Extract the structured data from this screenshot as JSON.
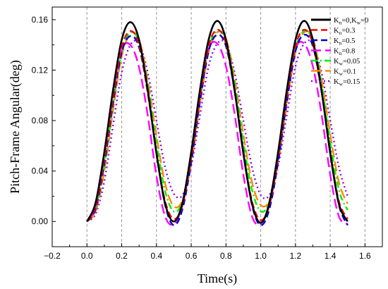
{
  "chart_data": {
    "type": "line",
    "title": "",
    "xlabel": "Time(s)",
    "ylabel": "Pitch-Frame Angular(deg)",
    "xlim": [
      -0.2,
      1.7
    ],
    "ylim": [
      -0.02,
      0.17
    ],
    "xticks": [
      -0.2,
      0.0,
      0.2,
      0.4,
      0.6,
      0.8,
      1.0,
      1.2,
      1.4,
      1.6
    ],
    "xtick_labels": [
      "−0.2",
      "0.0",
      "0.2",
      "0.4",
      "0.6",
      "0.8",
      "1.0",
      "1.2",
      "1.4",
      "1.6"
    ],
    "yticks": [
      0.0,
      0.04,
      0.08,
      0.12,
      0.16
    ],
    "ytick_labels": [
      "0.00",
      "0.04",
      "0.08",
      "0.12",
      "0.16"
    ],
    "grid": "vertical dashed",
    "legend": "top-right",
    "series": [
      {
        "sub": [
          "K",
          "n",
          "=0,K",
          "w",
          "=0"
        ],
        "color": "#000000",
        "style": "solid",
        "x": [
          0.0,
          0.05,
          0.1,
          0.15,
          0.2,
          0.25,
          0.3,
          0.35,
          0.4,
          0.45,
          0.5,
          0.55,
          0.6,
          0.65,
          0.7,
          0.75,
          0.8,
          0.85,
          0.9,
          0.95,
          1.0,
          1.05,
          1.1,
          1.15,
          1.2,
          1.25,
          1.3,
          1.35,
          1.4,
          1.45,
          1.5
        ],
        "y": [
          0.0,
          0.015,
          0.055,
          0.104,
          0.144,
          0.158,
          0.144,
          0.104,
          0.054,
          0.014,
          0.0,
          0.015,
          0.055,
          0.104,
          0.144,
          0.159,
          0.144,
          0.104,
          0.054,
          0.014,
          -0.001,
          0.015,
          0.055,
          0.104,
          0.144,
          0.159,
          0.144,
          0.104,
          0.054,
          0.014,
          0.0
        ]
      },
      {
        "sub": [
          "K",
          "n",
          "=0.3",
          "",
          ""
        ],
        "color": "#ff0000",
        "style": "dash",
        "x": [
          0.0,
          0.05,
          0.1,
          0.15,
          0.2,
          0.25,
          0.3,
          0.35,
          0.4,
          0.45,
          0.5,
          0.55,
          0.6,
          0.65,
          0.7,
          0.75,
          0.8,
          0.85,
          0.9,
          0.95,
          1.0,
          1.05,
          1.1,
          1.15,
          1.2,
          1.25,
          1.3,
          1.35,
          1.4,
          1.45,
          1.5
        ],
        "y": [
          0.0,
          0.012,
          0.05,
          0.098,
          0.138,
          0.151,
          0.14,
          0.102,
          0.054,
          0.016,
          0.002,
          0.013,
          0.051,
          0.099,
          0.139,
          0.152,
          0.141,
          0.103,
          0.055,
          0.016,
          0.001,
          0.013,
          0.051,
          0.099,
          0.139,
          0.152,
          0.141,
          0.103,
          0.055,
          0.016,
          0.002
        ]
      },
      {
        "sub": [
          "K",
          "n",
          "=0.5",
          "",
          ""
        ],
        "color": "#0000cc",
        "style": "dash",
        "x": [
          0.0,
          0.05,
          0.1,
          0.15,
          0.2,
          0.25,
          0.3,
          0.35,
          0.4,
          0.45,
          0.5,
          0.55,
          0.6,
          0.65,
          0.7,
          0.75,
          0.8,
          0.85,
          0.9,
          0.95,
          1.0,
          1.05,
          1.1,
          1.15,
          1.2,
          1.25,
          1.3,
          1.35,
          1.4,
          1.45,
          1.5
        ],
        "y": [
          0.0,
          0.01,
          0.046,
          0.094,
          0.134,
          0.147,
          0.138,
          0.102,
          0.055,
          0.013,
          -0.003,
          0.01,
          0.047,
          0.095,
          0.135,
          0.148,
          0.139,
          0.103,
          0.056,
          0.013,
          -0.003,
          0.01,
          0.047,
          0.095,
          0.135,
          0.148,
          0.139,
          0.103,
          0.056,
          0.013,
          -0.003
        ]
      },
      {
        "sub": [
          "K",
          "n",
          "=0.8",
          "",
          ""
        ],
        "color": "#ff00ff",
        "style": "longdash",
        "x": [
          0.0,
          0.05,
          0.1,
          0.15,
          0.2,
          0.25,
          0.3,
          0.35,
          0.4,
          0.45,
          0.5,
          0.55,
          0.6,
          0.65,
          0.7,
          0.75,
          0.8,
          0.85,
          0.9,
          0.95,
          1.0,
          1.05,
          1.1,
          1.15,
          1.2,
          1.25,
          1.3,
          1.35,
          1.4,
          1.45,
          1.5
        ],
        "y": [
          0.0,
          0.012,
          0.052,
          0.1,
          0.136,
          0.14,
          0.122,
          0.084,
          0.036,
          0.004,
          -0.002,
          0.014,
          0.054,
          0.102,
          0.137,
          0.141,
          0.123,
          0.085,
          0.037,
          0.004,
          -0.002,
          0.014,
          0.054,
          0.102,
          0.137,
          0.141,
          0.123,
          0.085,
          0.037,
          0.004,
          -0.002
        ]
      },
      {
        "sub": [
          "K",
          "w",
          "=0.05",
          "",
          ""
        ],
        "color": "#00ee00",
        "style": "dashdot",
        "x": [
          0.0,
          0.05,
          0.1,
          0.15,
          0.2,
          0.25,
          0.3,
          0.35,
          0.4,
          0.45,
          0.5,
          0.55,
          0.6,
          0.65,
          0.7,
          0.75,
          0.8,
          0.85,
          0.9,
          0.95,
          1.0,
          1.05,
          1.1,
          1.15,
          1.2,
          1.25,
          1.3,
          1.35,
          1.4,
          1.45,
          1.5
        ],
        "y": [
          0.0,
          0.01,
          0.044,
          0.092,
          0.134,
          0.15,
          0.142,
          0.108,
          0.062,
          0.024,
          0.008,
          0.016,
          0.05,
          0.097,
          0.137,
          0.151,
          0.143,
          0.109,
          0.063,
          0.025,
          0.008,
          0.016,
          0.05,
          0.097,
          0.137,
          0.151,
          0.143,
          0.109,
          0.063,
          0.025,
          0.009
        ]
      },
      {
        "sub": [
          "K",
          "w",
          "=0.1",
          "",
          ""
        ],
        "color": "#ff8800",
        "style": "longdash",
        "x": [
          0.0,
          0.05,
          0.1,
          0.15,
          0.2,
          0.25,
          0.3,
          0.35,
          0.4,
          0.45,
          0.5,
          0.55,
          0.6,
          0.65,
          0.7,
          0.75,
          0.8,
          0.85,
          0.9,
          0.95,
          1.0,
          1.05,
          1.1,
          1.15,
          1.2,
          1.25,
          1.3,
          1.35,
          1.4,
          1.45,
          1.5
        ],
        "y": [
          0.0,
          0.008,
          0.04,
          0.088,
          0.131,
          0.149,
          0.144,
          0.112,
          0.068,
          0.03,
          0.012,
          0.017,
          0.047,
          0.093,
          0.134,
          0.15,
          0.145,
          0.113,
          0.069,
          0.031,
          0.013,
          0.017,
          0.047,
          0.093,
          0.134,
          0.15,
          0.145,
          0.113,
          0.069,
          0.031,
          0.014
        ]
      },
      {
        "sub": [
          "K",
          "w",
          "=0.15",
          "",
          ""
        ],
        "color": "#8800ee",
        "style": "dot",
        "x": [
          0.0,
          0.05,
          0.1,
          0.15,
          0.2,
          0.25,
          0.3,
          0.35,
          0.4,
          0.45,
          0.5,
          0.55,
          0.6,
          0.65,
          0.7,
          0.75,
          0.8,
          0.85,
          0.9,
          0.95,
          1.0,
          1.05,
          1.1,
          1.15,
          1.2,
          1.25,
          1.3,
          1.35,
          1.4,
          1.45,
          1.5
        ],
        "y": [
          0.0,
          0.006,
          0.032,
          0.076,
          0.118,
          0.14,
          0.141,
          0.118,
          0.08,
          0.043,
          0.022,
          0.021,
          0.044,
          0.084,
          0.123,
          0.141,
          0.141,
          0.118,
          0.08,
          0.043,
          0.021,
          0.021,
          0.044,
          0.084,
          0.123,
          0.141,
          0.141,
          0.118,
          0.08,
          0.043,
          0.02
        ]
      }
    ]
  }
}
